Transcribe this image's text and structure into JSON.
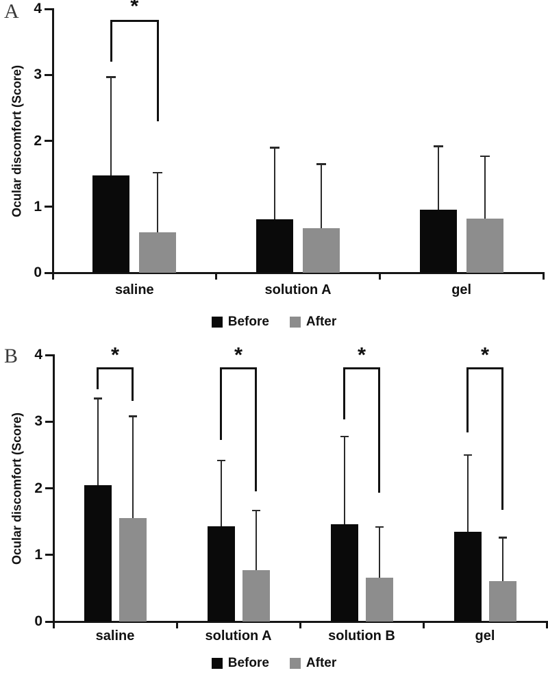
{
  "figure": {
    "background": "#ffffff",
    "axis_color": "#161616",
    "text_color": "#111111",
    "significance_symbol": "*"
  },
  "chart_data": [
    {
      "type": "bar",
      "panel_label": "A",
      "title": "",
      "xlabel": "",
      "ylabel": "Ocular discomfort (Score)",
      "ylim": [
        0,
        4
      ],
      "yticks": [
        0,
        1,
        2,
        3,
        4
      ],
      "grid": false,
      "legend_position": "bottom-center",
      "categories": [
        "saline",
        "solution A",
        "gel"
      ],
      "series": [
        {
          "name": "Before",
          "color": "#0a0a0a",
          "values": [
            1.48,
            0.81,
            0.96
          ],
          "error_tops": [
            2.97,
            1.9,
            1.92
          ]
        },
        {
          "name": "After",
          "color": "#8d8d8d",
          "values": [
            0.61,
            0.68,
            0.82
          ],
          "error_tops": [
            1.52,
            1.65,
            1.77
          ]
        }
      ],
      "significance_brackets": [
        {
          "category_index": 0,
          "label": "*",
          "top": 3.8,
          "left_arm_bottom": 3.2,
          "right_arm_bottom": 2.3
        }
      ]
    },
    {
      "type": "bar",
      "panel_label": "B",
      "title": "",
      "xlabel": "",
      "ylabel": "Ocular discomfort (Score)",
      "ylim": [
        0,
        4
      ],
      "yticks": [
        0,
        1,
        2,
        3,
        4
      ],
      "grid": false,
      "legend_position": "bottom-center",
      "categories": [
        "saline",
        "solution A",
        "solution B",
        "gel"
      ],
      "series": [
        {
          "name": "Before",
          "color": "#0a0a0a",
          "values": [
            2.05,
            1.43,
            1.46,
            1.35
          ],
          "error_tops": [
            3.35,
            2.42,
            2.78,
            2.5
          ]
        },
        {
          "name": "After",
          "color": "#8d8d8d",
          "values": [
            1.55,
            0.77,
            0.66,
            0.61
          ],
          "error_tops": [
            3.08,
            1.67,
            1.42,
            1.26
          ]
        }
      ],
      "significance_brackets": [
        {
          "category_index": 0,
          "label": "*",
          "top": 3.78,
          "left_arm_bottom": 3.49,
          "right_arm_bottom": 3.31
        },
        {
          "category_index": 1,
          "label": "*",
          "top": 3.78,
          "left_arm_bottom": 2.73,
          "right_arm_bottom": 1.95
        },
        {
          "category_index": 2,
          "label": "*",
          "top": 3.78,
          "left_arm_bottom": 3.03,
          "right_arm_bottom": 1.93
        },
        {
          "category_index": 3,
          "label": "*",
          "top": 3.78,
          "left_arm_bottom": 2.84,
          "right_arm_bottom": 1.68
        }
      ]
    }
  ]
}
